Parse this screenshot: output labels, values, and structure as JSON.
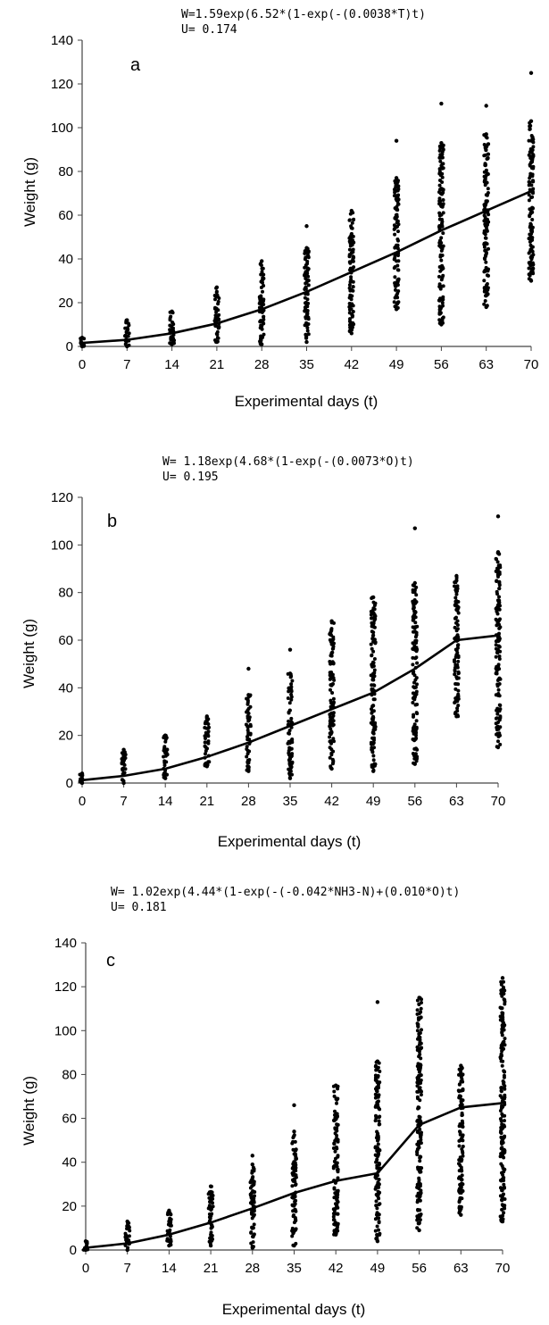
{
  "figure": {
    "background": "#ffffff",
    "ink": "#000000"
  },
  "chart_data": [
    {
      "type": "scatter",
      "panel_label": "a",
      "equation": "W=1.59exp(6.52*(1-exp(-(0.0038*T)t)",
      "u_statistic": "U= 0.174",
      "xlabel": "Experimental days (t)",
      "ylabel": "Weight (g)",
      "x_ticks": [
        0,
        7,
        14,
        21,
        28,
        35,
        42,
        49,
        56,
        63,
        70
      ],
      "y_ticks": [
        0,
        20,
        40,
        60,
        80,
        100,
        120,
        140
      ],
      "xlim": [
        0,
        70
      ],
      "ylim": [
        0,
        140
      ],
      "grid": false,
      "series": [
        {
          "kind": "points",
          "x": [
            0,
            7,
            14,
            21,
            28,
            35,
            42,
            49,
            56,
            63,
            70
          ],
          "y_min": [
            0,
            0,
            1,
            2,
            1,
            2,
            6,
            17,
            10,
            18,
            30
          ],
          "y_max": [
            4,
            12,
            16,
            27,
            39,
            45,
            62,
            77,
            93,
            97,
            103
          ],
          "outliers": [
            [
              35,
              55
            ],
            [
              49,
              94
            ],
            [
              56,
              111
            ],
            [
              63,
              110
            ],
            [
              70,
              125
            ]
          ]
        },
        {
          "kind": "fitted_line",
          "x": [
            0,
            7,
            14,
            21,
            28,
            35,
            42,
            49,
            56,
            63,
            70
          ],
          "y": [
            1.6,
            3,
            6,
            10.5,
            17,
            25,
            34,
            43,
            53,
            62,
            71
          ]
        }
      ]
    },
    {
      "type": "scatter",
      "panel_label": "b",
      "equation": "W= 1.18exp(4.68*(1-exp(-(0.0073*O)t)",
      "u_statistic": "U= 0.195",
      "xlabel": "Experimental days (t)",
      "ylabel": "Weight (g)",
      "x_ticks": [
        0,
        7,
        14,
        21,
        28,
        35,
        42,
        49,
        56,
        63,
        70
      ],
      "y_ticks": [
        0,
        20,
        40,
        60,
        80,
        100,
        120
      ],
      "xlim": [
        0,
        70
      ],
      "ylim": [
        0,
        120
      ],
      "grid": false,
      "series": [
        {
          "kind": "points",
          "x": [
            0,
            7,
            14,
            21,
            28,
            35,
            42,
            49,
            56,
            63,
            70
          ],
          "y_min": [
            0,
            0,
            2,
            7,
            5,
            2,
            6,
            5,
            8,
            28,
            15
          ],
          "y_max": [
            4,
            14,
            20,
            28,
            37,
            46,
            68,
            78,
            84,
            87,
            97
          ],
          "outliers": [
            [
              28,
              48
            ],
            [
              35,
              56
            ],
            [
              56,
              107
            ],
            [
              70,
              112
            ]
          ]
        },
        {
          "kind": "fitted_line",
          "x": [
            0,
            7,
            14,
            21,
            28,
            35,
            42,
            49,
            56,
            63,
            70
          ],
          "y": [
            1.2,
            3,
            6,
            11,
            17,
            24,
            31,
            38,
            48,
            60,
            62
          ]
        }
      ]
    },
    {
      "type": "scatter",
      "panel_label": "c",
      "equation": "W= 1.02exp(4.44*(1-exp(-(-0.042*NH3-N)+(0.010*O)t)",
      "u_statistic": "U= 0.181",
      "xlabel": "Experimental days (t)",
      "ylabel": "Weight (g)",
      "x_ticks": [
        0,
        7,
        14,
        21,
        28,
        35,
        42,
        49,
        56,
        63,
        70
      ],
      "y_ticks": [
        0,
        20,
        40,
        60,
        80,
        100,
        120,
        140
      ],
      "xlim": [
        0,
        70
      ],
      "ylim": [
        0,
        140
      ],
      "grid": false,
      "series": [
        {
          "kind": "points",
          "x": [
            0,
            7,
            14,
            21,
            28,
            35,
            42,
            49,
            56,
            63,
            70
          ],
          "y_min": [
            0,
            0,
            2,
            2,
            1,
            2,
            7,
            4,
            9,
            16,
            13
          ],
          "y_max": [
            4,
            13,
            18,
            29,
            39,
            54,
            75,
            86,
            115,
            84,
            124
          ],
          "outliers": [
            [
              28,
              43
            ],
            [
              35,
              66
            ],
            [
              49,
              113
            ]
          ]
        },
        {
          "kind": "fitted_line",
          "x": [
            0,
            7,
            14,
            21,
            28,
            35,
            42,
            49,
            56,
            63,
            70
          ],
          "y": [
            1,
            3,
            7,
            12.5,
            19,
            26,
            31.5,
            35,
            57,
            65,
            67
          ]
        }
      ]
    }
  ]
}
